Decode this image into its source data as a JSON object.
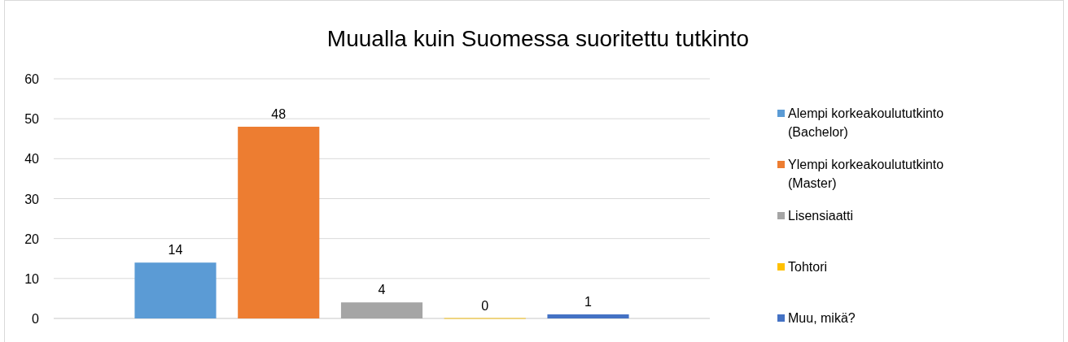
{
  "chart_data": {
    "type": "bar",
    "title": "Muualla kuin Suomessa suoritettu tutkinto",
    "categories": [
      null
    ],
    "series": [
      {
        "name": "Alempi korkeakoulututkinto (Bachelor)",
        "color": "#5b9bd5",
        "values": [
          14
        ]
      },
      {
        "name": "Ylempi korkeakoulututkinto (Master)",
        "color": "#ed7d31",
        "values": [
          48
        ]
      },
      {
        "name": "Lisensiaatti",
        "color": "#a5a5a5",
        "values": [
          4
        ]
      },
      {
        "name": "Tohtori",
        "color": "#ffc000",
        "values": [
          0
        ]
      },
      {
        "name": "Muu, mikä?",
        "color": "#4472c4",
        "values": [
          1
        ]
      }
    ],
    "ylim": [
      0,
      60
    ],
    "yticks": [
      0,
      10,
      20,
      30,
      40,
      50,
      60
    ],
    "grid": "y",
    "legend": "right",
    "data_labels": true
  }
}
